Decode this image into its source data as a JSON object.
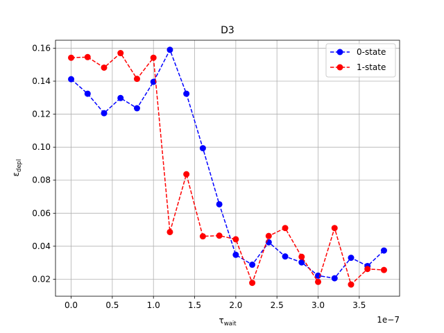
{
  "chart_data": {
    "type": "line",
    "title": "D3",
    "xlabel": "τ",
    "xlabel_sub": "wait",
    "ylabel": "ε",
    "ylabel_sub": "depl",
    "x_offset_label": "1e−7",
    "x_tick_labels": [
      "0.0",
      "0.5",
      "1.0",
      "1.5",
      "2.0",
      "2.5",
      "3.0",
      "3.5"
    ],
    "y_tick_labels": [
      "0.02",
      "0.04",
      "0.06",
      "0.08",
      "0.10",
      "0.12",
      "0.14",
      "0.16"
    ],
    "x": [
      0.0,
      0.2,
      0.4,
      0.6,
      0.8,
      1.0,
      1.2,
      1.4,
      1.6,
      1.8,
      2.0,
      2.2,
      2.4,
      2.6,
      2.8,
      3.0,
      3.2,
      3.4,
      3.6,
      3.8
    ],
    "x_scale": "1e-7",
    "xlim": [
      -0.19,
      3.99
    ],
    "ylim": [
      0.0097,
      0.1648
    ],
    "grid": true,
    "legend_position": "upper right",
    "series": [
      {
        "name": "0-state",
        "color": "#0000ff",
        "linestyle": "dashed",
        "marker": "circle",
        "values": [
          0.1412,
          0.1324,
          0.1206,
          0.1298,
          0.1236,
          0.1396,
          0.159,
          0.1324,
          0.0994,
          0.0654,
          0.0348,
          0.0288,
          0.0424,
          0.0338,
          0.0302,
          0.0222,
          0.0206,
          0.033,
          0.028,
          0.0374
        ]
      },
      {
        "name": "1-state",
        "color": "#ff0000",
        "linestyle": "dashed",
        "marker": "circle",
        "values": [
          0.1542,
          0.1546,
          0.1482,
          0.157,
          0.1414,
          0.1542,
          0.0486,
          0.0836,
          0.046,
          0.0464,
          0.0442,
          0.0178,
          0.0462,
          0.051,
          0.0336,
          0.0184,
          0.051,
          0.0168,
          0.0262,
          0.0256
        ]
      }
    ]
  }
}
